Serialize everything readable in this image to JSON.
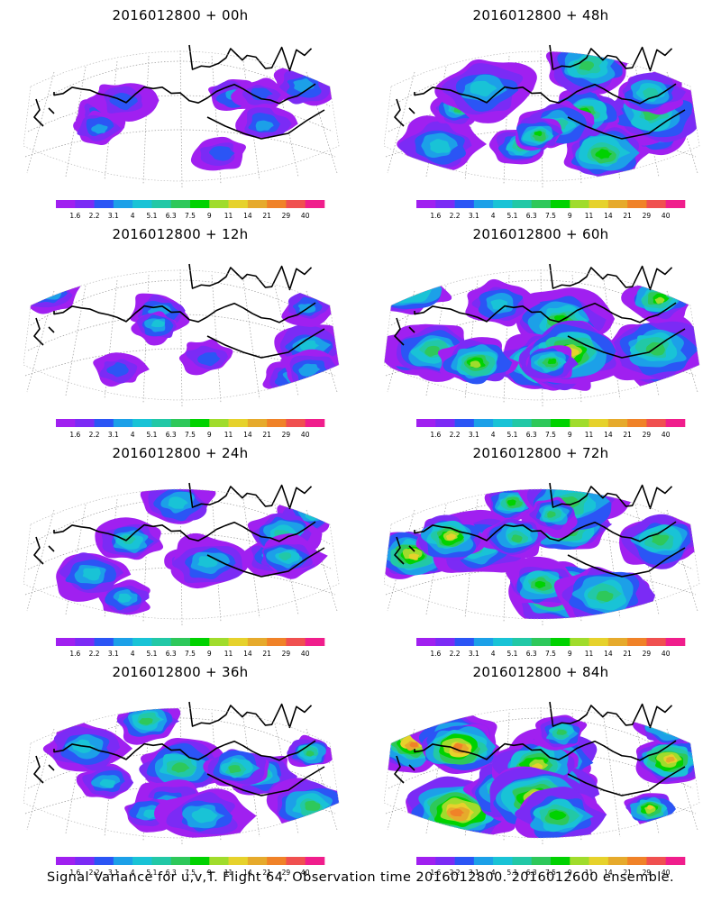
{
  "panels": [
    {
      "title": "2016012800 + 00h",
      "lead_hours": 0
    },
    {
      "title": "2016012800 + 48h",
      "lead_hours": 48
    },
    {
      "title": "2016012800 + 12h",
      "lead_hours": 12
    },
    {
      "title": "2016012800 + 60h",
      "lead_hours": 60
    },
    {
      "title": "2016012800 + 24h",
      "lead_hours": 24
    },
    {
      "title": "2016012800 + 72h",
      "lead_hours": 72
    },
    {
      "title": "2016012800 + 36h",
      "lead_hours": 36
    },
    {
      "title": "2016012800 + 84h",
      "lead_hours": 84
    }
  ],
  "colorbar": {
    "labels": [
      "1.6",
      "2.2",
      "3.1",
      "4",
      "5.1",
      "6.3",
      "7.5",
      "9",
      "11",
      "14",
      "21",
      "29",
      "40"
    ],
    "colors": [
      "#a020f0",
      "#7b2bf5",
      "#2b55f5",
      "#1ca0e8",
      "#19c3d6",
      "#22c8a6",
      "#2ec85a",
      "#00d200",
      "#a0dc2c",
      "#e6d22c",
      "#e6aa2c",
      "#f08228",
      "#f05050",
      "#f01e8c"
    ]
  },
  "footer": "Signal Variance for u,v,T. Flight 64. Observation time 2016012800. 2016012600 ensemble."
}
